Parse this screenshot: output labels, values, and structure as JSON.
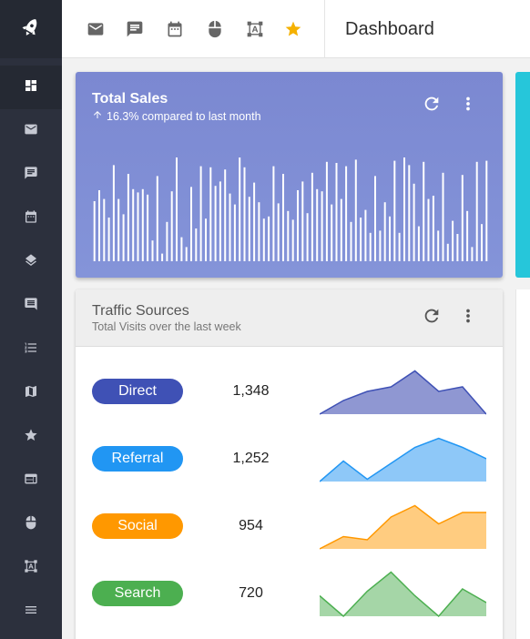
{
  "sidebar": {
    "logo": "rocket-icon",
    "items": [
      {
        "icon": "dashboard-icon",
        "active": true
      },
      {
        "icon": "mail-icon"
      },
      {
        "icon": "chat-icon"
      },
      {
        "icon": "calendar-icon"
      },
      {
        "icon": "layers-icon"
      },
      {
        "icon": "comment-icon"
      },
      {
        "icon": "list-icon"
      },
      {
        "icon": "map-icon"
      },
      {
        "icon": "star-icon"
      },
      {
        "icon": "web-icon"
      },
      {
        "icon": "mouse-icon"
      },
      {
        "icon": "select-icon"
      },
      {
        "icon": "menu-icon"
      }
    ]
  },
  "topbar": {
    "icons": [
      "mail-icon",
      "chat-icon",
      "calendar-icon",
      "mouse-icon",
      "text-select-icon",
      "star-icon"
    ],
    "title": "Dashboard"
  },
  "sales": {
    "title": "Total Sales",
    "subtitle": "16.3% compared to last month",
    "bars": [
      0.55,
      0.65,
      0.57,
      0.4,
      0.88,
      0.57,
      0.43,
      0.8,
      0.66,
      0.63,
      0.66,
      0.61,
      0.19,
      0.78,
      0.07,
      0.36,
      0.64,
      0.95,
      0.22,
      0.13,
      0.68,
      0.3,
      0.87,
      0.39,
      0.86,
      0.69,
      0.73,
      0.84,
      0.62,
      0.52,
      0.95,
      0.86,
      0.59,
      0.72,
      0.54,
      0.39,
      0.41,
      0.87,
      0.53,
      0.8,
      0.46,
      0.38,
      0.65,
      0.73,
      0.44,
      0.81,
      0.66,
      0.64,
      0.91,
      0.52,
      0.9,
      0.57,
      0.87,
      0.36,
      0.93,
      0.4,
      0.47,
      0.26,
      0.78,
      0.28,
      0.54,
      0.41,
      0.92,
      0.26,
      0.95,
      0.88,
      0.71,
      0.32,
      0.91,
      0.57,
      0.6,
      0.28,
      0.81,
      0.16,
      0.37,
      0.25,
      0.79,
      0.46,
      0.13,
      0.91,
      0.34,
      0.92
    ]
  },
  "traffic": {
    "title": "Traffic Sources",
    "subtitle": "Total Visits over the last week",
    "sources": [
      {
        "name": "Direct",
        "count": "1,348",
        "color": "#3f51b5",
        "fill": "#8f97d2",
        "trend": [
          0.0,
          0.3,
          0.5,
          0.6,
          0.95,
          0.5,
          0.6,
          0.0
        ]
      },
      {
        "name": "Referral",
        "count": "1,252",
        "color": "#2196f3",
        "fill": "#8ec8f8",
        "trend": [
          0.0,
          0.45,
          0.05,
          0.4,
          0.75,
          0.95,
          0.75,
          0.5
        ]
      },
      {
        "name": "Social",
        "count": "954",
        "color": "#ff9800",
        "fill": "#ffcc80",
        "trend": [
          0.0,
          0.27,
          0.2,
          0.7,
          0.95,
          0.55,
          0.8,
          0.8
        ]
      },
      {
        "name": "Search",
        "count": "720",
        "color": "#4caf50",
        "fill": "#a5d6a7",
        "trend": [
          0.45,
          0.0,
          0.55,
          0.97,
          0.45,
          0.0,
          0.6,
          0.3
        ]
      }
    ]
  }
}
